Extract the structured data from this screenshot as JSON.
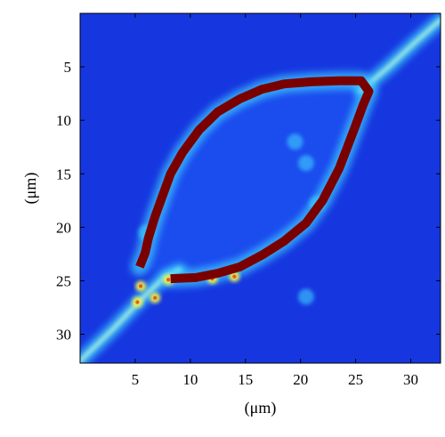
{
  "chart_data": {
    "type": "heatmap",
    "title": "",
    "xlabel": "(μm)",
    "ylabel": "(μm)",
    "xlim": [
      0,
      32.7
    ],
    "ylim": [
      32.7,
      0
    ],
    "y_axis_inverted": true,
    "x_ticks": [
      5,
      10,
      15,
      20,
      25,
      30
    ],
    "y_ticks": [
      5,
      10,
      15,
      20,
      25,
      30
    ],
    "colormap": "jet",
    "colors": {
      "background": "#1637e0",
      "low": "#1e4ff0",
      "mid": "#3fd0ff",
      "high": "#f3f24a",
      "contour": "#7a0000"
    },
    "cell_outline": {
      "name": "",
      "points": [
        [
          8.2,
          24.8
        ],
        [
          10.5,
          24.7
        ],
        [
          12.5,
          24.3
        ],
        [
          14.5,
          23.7
        ],
        [
          16.5,
          22.6
        ],
        [
          18.5,
          21.3
        ],
        [
          20.5,
          19.6
        ],
        [
          22.0,
          17.5
        ],
        [
          23.5,
          14.5
        ],
        [
          24.8,
          11.0
        ],
        [
          25.7,
          8.5
        ],
        [
          26.2,
          7.3
        ],
        [
          25.5,
          6.3
        ],
        [
          23.5,
          6.3
        ],
        [
          21.0,
          6.4
        ],
        [
          18.5,
          6.6
        ],
        [
          16.5,
          7.1
        ],
        [
          14.5,
          8.0
        ],
        [
          12.5,
          9.2
        ],
        [
          10.8,
          10.9
        ],
        [
          9.3,
          13.0
        ],
        [
          8.2,
          15.0
        ],
        [
          7.5,
          17.0
        ],
        [
          6.8,
          19.0
        ],
        [
          6.2,
          21.0
        ],
        [
          5.9,
          22.4
        ],
        [
          5.4,
          23.7
        ]
      ]
    },
    "process_strands": [
      [
        [
          0,
          32.5
        ],
        [
          3,
          29.5
        ],
        [
          5.5,
          26.8
        ],
        [
          7.5,
          24.8
        ],
        [
          9,
          24.0
        ]
      ],
      [
        [
          25.5,
          7.2
        ],
        [
          28,
          5.0
        ],
        [
          30.5,
          2.6
        ],
        [
          32.7,
          0.6
        ]
      ]
    ],
    "hotspots": [
      {
        "x": 5.2,
        "y": 27.0,
        "value": "high"
      },
      {
        "x": 6.8,
        "y": 26.6,
        "value": "high"
      },
      {
        "x": 8.0,
        "y": 24.9,
        "value": "high"
      },
      {
        "x": 12.0,
        "y": 24.8,
        "value": "high"
      },
      {
        "x": 14.0,
        "y": 24.6,
        "value": "high"
      },
      {
        "x": 5.5,
        "y": 25.5,
        "value": "high"
      },
      {
        "x": 6.0,
        "y": 20.5,
        "value": "mid"
      },
      {
        "x": 21.5,
        "y": 17.8,
        "value": "mid"
      },
      {
        "x": 19.5,
        "y": 12.0,
        "value": "mid"
      },
      {
        "x": 20.5,
        "y": 14.0,
        "value": "mid"
      },
      {
        "x": 20.5,
        "y": 26.5,
        "value": "mid"
      }
    ]
  }
}
